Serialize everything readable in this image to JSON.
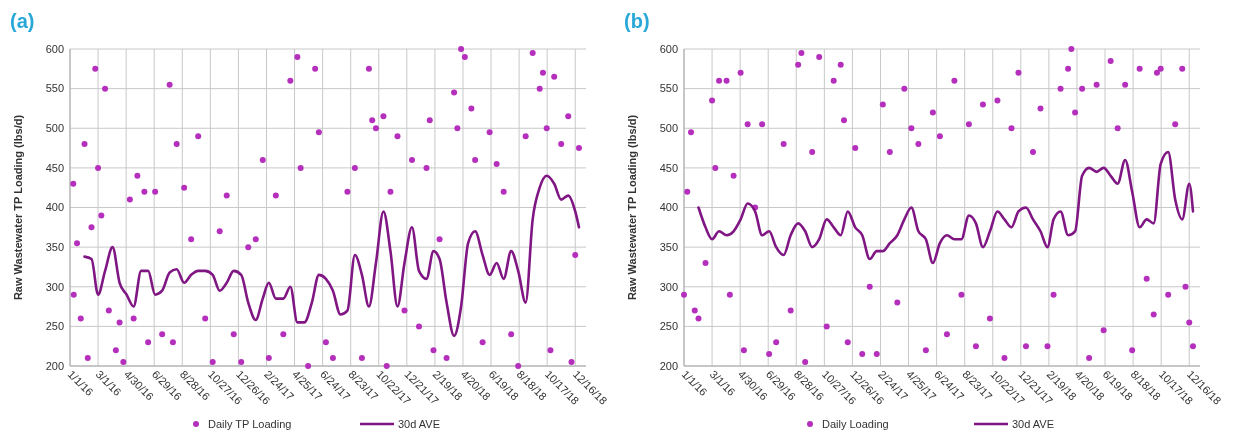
{
  "chart_data": [
    {
      "type": "scatter",
      "title": "(a)",
      "ylabel": "Raw Wastewater TP Loading (lbs/d)",
      "xlim": [
        "2016-01-01",
        "2019-01-08"
      ],
      "ylim": [
        200,
        600
      ],
      "yticks": [
        200,
        250,
        300,
        350,
        400,
        450,
        500,
        550,
        600
      ],
      "xticks": [
        {
          "value": "2016-01-01",
          "label": "1/1/16"
        },
        {
          "value": "2016-03-01",
          "label": "3/1/16"
        },
        {
          "value": "2016-04-30",
          "label": "4/30/16"
        },
        {
          "value": "2016-06-29",
          "label": "6/29/16"
        },
        {
          "value": "2016-08-28",
          "label": "8/28/16"
        },
        {
          "value": "2016-10-27",
          "label": "10/27/16"
        },
        {
          "value": "2016-12-26",
          "label": "12/26/16"
        },
        {
          "value": "2017-02-24",
          "label": "2/24/17"
        },
        {
          "value": "2017-04-25",
          "label": "4/25/17"
        },
        {
          "value": "2017-06-24",
          "label": "6/24/17"
        },
        {
          "value": "2017-08-23",
          "label": "8/23/17"
        },
        {
          "value": "2017-10-22",
          "label": "10/22/17"
        },
        {
          "value": "2017-12-21",
          "label": "12/21/17"
        },
        {
          "value": "2018-02-19",
          "label": "2/19/18"
        },
        {
          "value": "2018-04-20",
          "label": "4/20/18"
        },
        {
          "value": "2018-06-19",
          "label": "6/19/18"
        },
        {
          "value": "2018-08-18",
          "label": "8/18/18"
        },
        {
          "value": "2018-10-17",
          "label": "10/17/18"
        },
        {
          "value": "2018-12-16",
          "label": "12/16/18"
        }
      ],
      "grid": true,
      "legend": "bottom",
      "series": [
        {
          "name": "Daily TP Loading",
          "marker": "circle",
          "color": "#b52fbd",
          "x": [
            "2016-01-08",
            "2016-01-09",
            "2016-01-16",
            "2016-01-24",
            "2016-02-01",
            "2016-02-08",
            "2016-02-16",
            "2016-02-24",
            "2016-03-01",
            "2016-03-08",
            "2016-03-16",
            "2016-03-24",
            "2016-04-08",
            "2016-04-16",
            "2016-04-24",
            "2016-05-08",
            "2016-05-16",
            "2016-05-24",
            "2016-06-08",
            "2016-06-16",
            "2016-07-01",
            "2016-07-16",
            "2016-08-01",
            "2016-08-08",
            "2016-08-16",
            "2016-09-01",
            "2016-09-16",
            "2016-10-01",
            "2016-10-16",
            "2016-11-01",
            "2016-11-16",
            "2016-12-01",
            "2016-12-16",
            "2017-01-01",
            "2017-01-16",
            "2017-02-01",
            "2017-02-16",
            "2017-03-01",
            "2017-03-16",
            "2017-04-01",
            "2017-04-16",
            "2017-05-01",
            "2017-05-08",
            "2017-05-24",
            "2017-06-08",
            "2017-06-16",
            "2017-07-01",
            "2017-07-16",
            "2017-08-16",
            "2017-09-01",
            "2017-09-16",
            "2017-10-01",
            "2017-10-08",
            "2017-10-16",
            "2017-11-01",
            "2017-11-08",
            "2017-11-16",
            "2017-12-01",
            "2017-12-16",
            "2018-01-01",
            "2018-01-16",
            "2018-02-01",
            "2018-02-08",
            "2018-02-16",
            "2018-03-01",
            "2018-03-16",
            "2018-04-01",
            "2018-04-08",
            "2018-04-16",
            "2018-04-24",
            "2018-05-08",
            "2018-05-16",
            "2018-06-01",
            "2018-06-16",
            "2018-07-01",
            "2018-07-16",
            "2018-08-01",
            "2018-08-16",
            "2018-09-01",
            "2018-09-16",
            "2018-10-01",
            "2018-10-08",
            "2018-10-16",
            "2018-10-24",
            "2018-11-01",
            "2018-11-16",
            "2018-12-01",
            "2018-12-08",
            "2018-12-16",
            "2018-12-24"
          ],
          "values": [
            430,
            290,
            355,
            260,
            480,
            210,
            375,
            575,
            450,
            390,
            550,
            270,
            220,
            255,
            205,
            410,
            260,
            440,
            420,
            230,
            420,
            240,
            555,
            230,
            480,
            425,
            360,
            490,
            260,
            205,
            370,
            415,
            240,
            205,
            350,
            360,
            460,
            210,
            415,
            240,
            560,
            590,
            450,
            200,
            575,
            495,
            230,
            210,
            420,
            450,
            210,
            575,
            510,
            500,
            515,
            200,
            420,
            490,
            270,
            460,
            250,
            450,
            510,
            220,
            360,
            210,
            545,
            500,
            600,
            590,
            525,
            460,
            230,
            495,
            455,
            420,
            240,
            200,
            490,
            595,
            550,
            570,
            500,
            220,
            565,
            480,
            515,
            205,
            340,
            475
          ]
        },
        {
          "name": "30d AVE",
          "type": "line",
          "marker": "none",
          "color": "#7f1683",
          "x": [
            "2016-02-01",
            "2016-02-16",
            "2016-03-01",
            "2016-03-16",
            "2016-04-01",
            "2016-04-16",
            "2016-05-01",
            "2016-05-16",
            "2016-06-01",
            "2016-06-16",
            "2016-07-01",
            "2016-07-16",
            "2016-08-01",
            "2016-08-16",
            "2016-09-01",
            "2016-09-16",
            "2016-10-01",
            "2016-10-16",
            "2016-11-01",
            "2016-11-16",
            "2016-12-01",
            "2016-12-16",
            "2017-01-01",
            "2017-01-16",
            "2017-02-01",
            "2017-02-16",
            "2017-03-01",
            "2017-03-16",
            "2017-04-01",
            "2017-04-16",
            "2017-05-01",
            "2017-05-16",
            "2017-06-01",
            "2017-06-16",
            "2017-07-01",
            "2017-07-16",
            "2017-08-01",
            "2017-08-16",
            "2017-09-01",
            "2017-09-16",
            "2017-10-01",
            "2017-10-16",
            "2017-11-01",
            "2017-11-16",
            "2017-12-01",
            "2017-12-16",
            "2018-01-01",
            "2018-01-16",
            "2018-02-01",
            "2018-02-16",
            "2018-03-01",
            "2018-03-16",
            "2018-04-01",
            "2018-04-16",
            "2018-05-01",
            "2018-05-16",
            "2018-06-01",
            "2018-06-16",
            "2018-07-01",
            "2018-07-16",
            "2018-08-01",
            "2018-08-16",
            "2018-09-01",
            "2018-09-16",
            "2018-10-01",
            "2018-10-16",
            "2018-11-01",
            "2018-11-16",
            "2018-12-01",
            "2018-12-16",
            "2018-12-24"
          ],
          "values": [
            338,
            335,
            290,
            320,
            350,
            305,
            290,
            275,
            320,
            320,
            290,
            295,
            318,
            322,
            305,
            315,
            320,
            320,
            315,
            295,
            305,
            320,
            315,
            280,
            258,
            285,
            305,
            285,
            285,
            300,
            255,
            255,
            280,
            315,
            310,
            295,
            265,
            270,
            340,
            315,
            275,
            330,
            395,
            345,
            275,
            330,
            375,
            320,
            310,
            345,
            335,
            280,
            238,
            275,
            355,
            370,
            340,
            315,
            330,
            310,
            345,
            320,
            280,
            385,
            425,
            440,
            430,
            410,
            415,
            395,
            375
          ]
        }
      ]
    },
    {
      "type": "scatter",
      "title": "(b)",
      "ylabel": "Raw Wastewater TP Loading (lbs/d)",
      "xlim": [
        "2016-01-01",
        "2019-01-08"
      ],
      "ylim": [
        200,
        600
      ],
      "yticks": [
        200,
        250,
        300,
        350,
        400,
        450,
        500,
        550,
        600
      ],
      "xticks": [
        {
          "value": "2016-01-01",
          "label": "1/1/16"
        },
        {
          "value": "2016-03-01",
          "label": "3/1/16"
        },
        {
          "value": "2016-04-30",
          "label": "4/30/16"
        },
        {
          "value": "2016-06-29",
          "label": "6/29/16"
        },
        {
          "value": "2016-08-28",
          "label": "8/28/16"
        },
        {
          "value": "2016-10-27",
          "label": "10/27/16"
        },
        {
          "value": "2016-12-26",
          "label": "12/26/16"
        },
        {
          "value": "2017-02-24",
          "label": "2/24/17"
        },
        {
          "value": "2017-04-25",
          "label": "4/25/17"
        },
        {
          "value": "2017-06-24",
          "label": "6/24/17"
        },
        {
          "value": "2017-08-23",
          "label": "8/23/17"
        },
        {
          "value": "2017-10-22",
          "label": "10/22/17"
        },
        {
          "value": "2017-12-21",
          "label": "12/21/17"
        },
        {
          "value": "2018-02-19",
          "label": "2/19/18"
        },
        {
          "value": "2018-04-20",
          "label": "4/20/18"
        },
        {
          "value": "2018-06-19",
          "label": "6/19/18"
        },
        {
          "value": "2018-08-18",
          "label": "8/18/18"
        },
        {
          "value": "2018-10-17",
          "label": "10/17/18"
        },
        {
          "value": "2018-12-16",
          "label": "12/16/18"
        }
      ],
      "grid": true,
      "legend": "bottom",
      "series": [
        {
          "name": "Daily Loading",
          "marker": "circle",
          "color": "#b52fbd",
          "x": [
            "2016-01-01",
            "2016-01-08",
            "2016-01-16",
            "2016-01-24",
            "2016-02-01",
            "2016-02-16",
            "2016-03-01",
            "2016-03-08",
            "2016-03-16",
            "2016-04-01",
            "2016-04-08",
            "2016-04-16",
            "2016-05-01",
            "2016-05-08",
            "2016-05-16",
            "2016-06-01",
            "2016-06-16",
            "2016-07-01",
            "2016-07-16",
            "2016-08-01",
            "2016-08-16",
            "2016-09-01",
            "2016-09-08",
            "2016-09-16",
            "2016-10-01",
            "2016-10-16",
            "2016-11-01",
            "2016-11-16",
            "2016-12-01",
            "2016-12-08",
            "2016-12-16",
            "2017-01-01",
            "2017-01-16",
            "2017-02-01",
            "2017-02-16",
            "2017-03-01",
            "2017-03-16",
            "2017-04-01",
            "2017-04-16",
            "2017-05-01",
            "2017-05-16",
            "2017-06-01",
            "2017-06-16",
            "2017-07-01",
            "2017-07-16",
            "2017-08-01",
            "2017-08-16",
            "2017-09-01",
            "2017-09-16",
            "2017-10-01",
            "2017-10-16",
            "2017-11-01",
            "2017-11-16",
            "2017-12-01",
            "2017-12-16",
            "2018-01-01",
            "2018-01-16",
            "2018-02-01",
            "2018-02-16",
            "2018-03-01",
            "2018-03-16",
            "2018-04-01",
            "2018-04-08",
            "2018-04-16",
            "2018-05-01",
            "2018-05-16",
            "2018-06-01",
            "2018-06-16",
            "2018-07-01",
            "2018-07-16",
            "2018-08-01",
            "2018-08-16",
            "2018-09-01",
            "2018-09-16",
            "2018-10-01",
            "2018-10-08",
            "2018-10-16",
            "2018-11-01",
            "2018-11-16",
            "2018-12-01",
            "2018-12-08",
            "2018-12-16",
            "2018-12-24"
          ],
          "values": [
            290,
            420,
            495,
            270,
            260,
            330,
            535,
            450,
            560,
            560,
            290,
            440,
            570,
            220,
            505,
            400,
            505,
            215,
            230,
            480,
            270,
            580,
            595,
            205,
            470,
            590,
            250,
            560,
            580,
            510,
            230,
            475,
            215,
            300,
            215,
            530,
            470,
            280,
            550,
            500,
            480,
            220,
            520,
            490,
            240,
            560,
            290,
            505,
            225,
            530,
            260,
            535,
            210,
            500,
            570,
            225,
            470,
            525,
            225,
            290,
            550,
            575,
            600,
            520,
            550,
            210,
            555,
            245,
            585,
            500,
            555,
            220,
            575,
            310,
            265,
            570,
            575,
            290,
            505,
            575,
            300,
            255,
            225
          ]
        },
        {
          "name": "30d AVE",
          "type": "line",
          "marker": "none",
          "color": "#7f1683",
          "x": [
            "2016-02-01",
            "2016-02-16",
            "2016-03-01",
            "2016-03-16",
            "2016-04-01",
            "2016-04-16",
            "2016-05-01",
            "2016-05-16",
            "2016-06-01",
            "2016-06-16",
            "2016-07-01",
            "2016-07-16",
            "2016-08-01",
            "2016-08-16",
            "2016-09-01",
            "2016-09-16",
            "2016-10-01",
            "2016-10-16",
            "2016-11-01",
            "2016-11-16",
            "2016-12-01",
            "2016-12-16",
            "2017-01-01",
            "2017-01-16",
            "2017-02-01",
            "2017-02-16",
            "2017-03-01",
            "2017-03-16",
            "2017-04-01",
            "2017-04-16",
            "2017-05-01",
            "2017-05-16",
            "2017-06-01",
            "2017-06-16",
            "2017-07-01",
            "2017-07-16",
            "2017-08-01",
            "2017-08-16",
            "2017-09-01",
            "2017-09-16",
            "2017-10-01",
            "2017-10-16",
            "2017-11-01",
            "2017-11-16",
            "2017-12-01",
            "2017-12-16",
            "2018-01-01",
            "2018-01-16",
            "2018-02-01",
            "2018-02-16",
            "2018-03-01",
            "2018-03-16",
            "2018-04-01",
            "2018-04-16",
            "2018-05-01",
            "2018-05-16",
            "2018-06-01",
            "2018-06-16",
            "2018-07-01",
            "2018-07-16",
            "2018-08-01",
            "2018-08-16",
            "2018-09-01",
            "2018-09-16",
            "2018-10-01",
            "2018-10-16",
            "2018-11-01",
            "2018-11-16",
            "2018-12-01",
            "2018-12-16",
            "2018-12-24"
          ],
          "values": [
            400,
            375,
            360,
            370,
            365,
            370,
            385,
            405,
            395,
            365,
            370,
            350,
            340,
            365,
            380,
            370,
            350,
            360,
            385,
            375,
            365,
            395,
            375,
            365,
            335,
            345,
            345,
            355,
            365,
            385,
            400,
            370,
            360,
            330,
            355,
            365,
            360,
            360,
            390,
            380,
            350,
            370,
            395,
            385,
            375,
            395,
            400,
            385,
            370,
            350,
            385,
            395,
            365,
            370,
            440,
            450,
            445,
            450,
            440,
            430,
            460,
            420,
            375,
            385,
            380,
            455,
            470,
            410,
            385,
            430,
            395
          ]
        }
      ]
    }
  ]
}
